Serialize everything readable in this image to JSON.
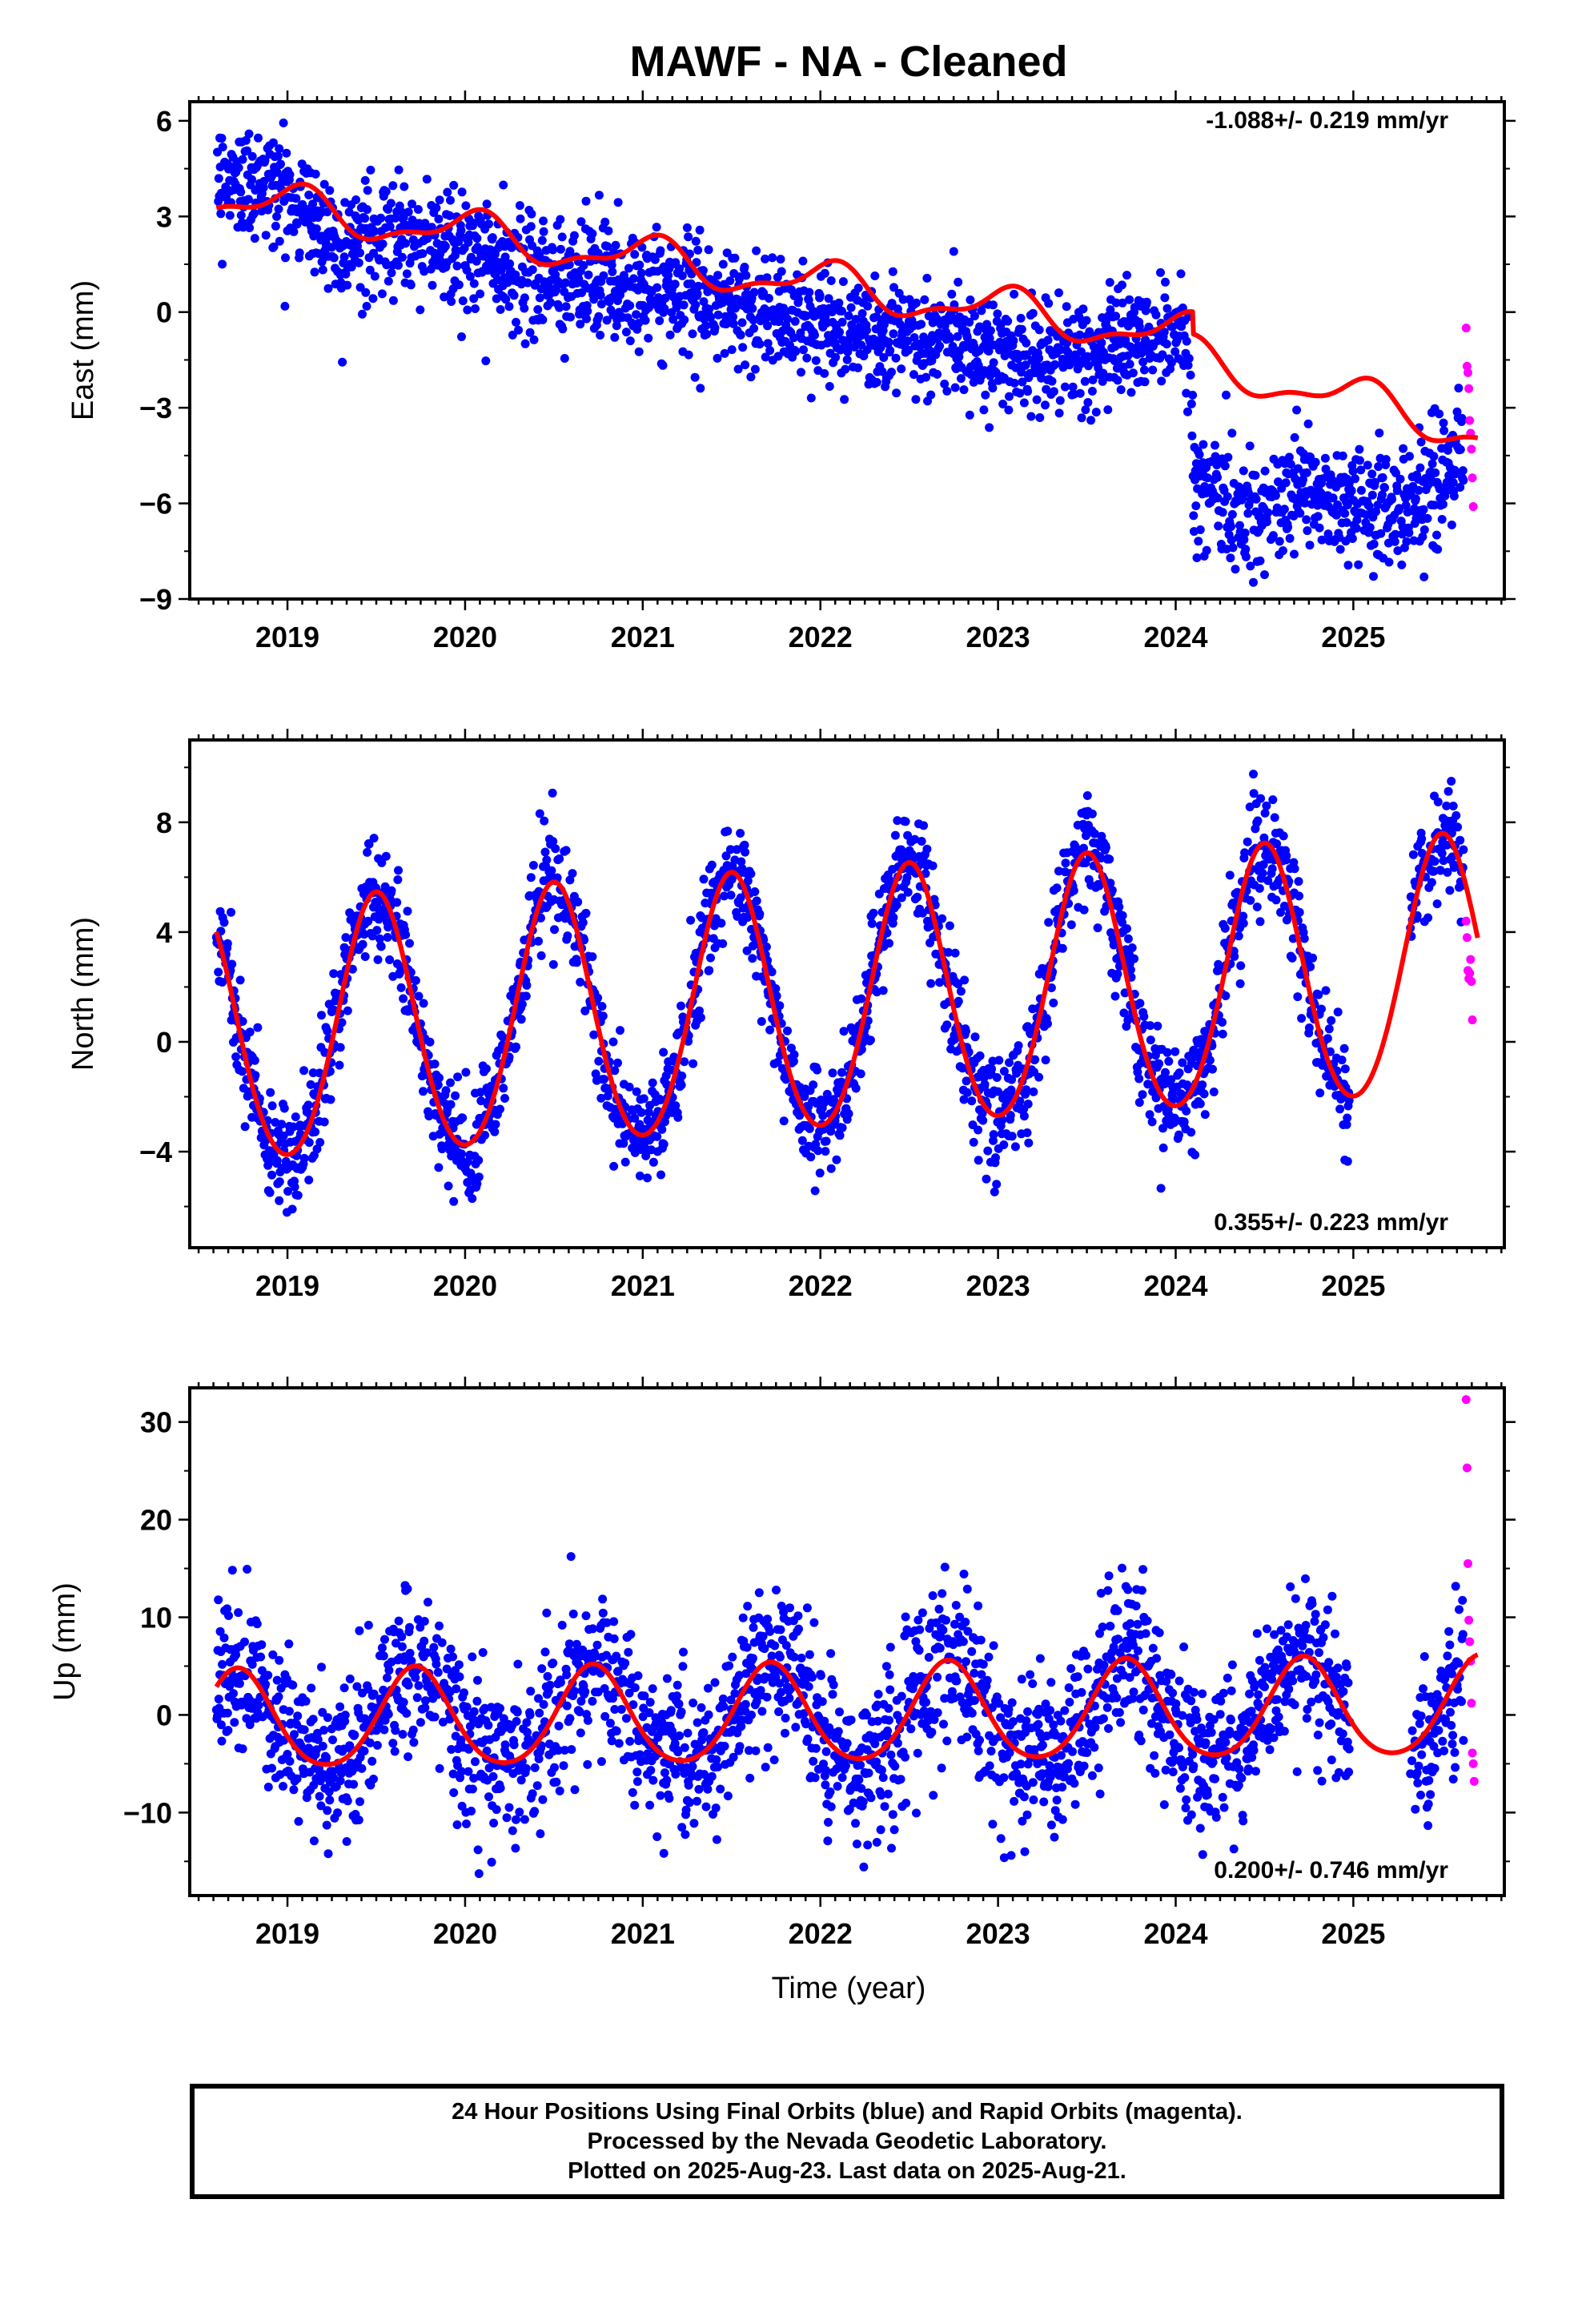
{
  "title": "MAWF  - NA - Cleaned",
  "xlabel": "Time (year)",
  "caption": {
    "line1": "24 Hour Positions Using Final Orbits (blue) and Rapid Orbits (magenta).",
    "line2": "Processed by the Nevada Geodetic Laboratory.",
    "line3": "Plotted on 2025-Aug-23. Last data on 2025-Aug-21."
  },
  "colors": {
    "final_orbits": "#0000ff",
    "rapid_orbits": "#ff00ff",
    "model": "#ff0000",
    "frame": "#000000"
  },
  "chart_data": [
    {
      "type": "scatter",
      "ylabel": "East (mm)",
      "rate_text": "-1.088+/- 0.219 mm/yr",
      "rate_position": "top-right",
      "xlim": [
        2018.45,
        2025.85
      ],
      "ylim": [
        -9,
        6.6
      ],
      "yticks": [
        6,
        3,
        0,
        -3,
        -6,
        -9
      ],
      "xticks": [
        2019,
        2020,
        2021,
        2022,
        2023,
        2024,
        2025
      ],
      "grid": false,
      "series": [
        {
          "kind": "points",
          "color_key": "final_orbits",
          "x_range": [
            2018.6,
            2025.62
          ],
          "scatter_sd": 0.9,
          "centerline": [
            [
              2018.6,
              4.3
            ],
            [
              2019.0,
              3.8
            ],
            [
              2019.3,
              2.2
            ],
            [
              2019.7,
              2.4
            ],
            [
              2020.0,
              2.0
            ],
            [
              2020.3,
              1.3
            ],
            [
              2020.7,
              1.0
            ],
            [
              2021.0,
              0.8
            ],
            [
              2021.4,
              0.2
            ],
            [
              2021.7,
              0.0
            ],
            [
              2022.0,
              -0.4
            ],
            [
              2022.4,
              -0.8
            ],
            [
              2022.7,
              -0.8
            ],
            [
              2023.0,
              -1.3
            ],
            [
              2023.4,
              -1.6
            ],
            [
              2023.7,
              -1.0
            ],
            [
              2024.0,
              -0.7
            ],
            [
              2024.08,
              -1.2
            ],
            [
              2024.1,
              -5.3
            ],
            [
              2024.4,
              -6.5
            ],
            [
              2024.7,
              -5.6
            ],
            [
              2025.0,
              -6.0
            ],
            [
              2025.3,
              -6.2
            ],
            [
              2025.4,
              -5.6
            ],
            [
              2025.62,
              -4.5
            ]
          ]
        },
        {
          "kind": "points",
          "color_key": "rapid_orbits",
          "x_range": [
            2025.63,
            2025.7
          ],
          "values": [
            [
              2025.635,
              -0.5
            ],
            [
              2025.64,
              -1.7
            ],
            [
              2025.645,
              -1.9
            ],
            [
              2025.65,
              -2.4
            ],
            [
              2025.655,
              -3.4
            ],
            [
              2025.66,
              -3.8
            ],
            [
              2025.665,
              -4.3
            ],
            [
              2025.67,
              -5.2
            ],
            [
              2025.675,
              -6.1
            ]
          ]
        },
        {
          "kind": "line",
          "color_key": "model",
          "trend": {
            "t0": 2018.6,
            "y0": 3.6,
            "segments": [
              [
                2018.6,
                -0.8
              ],
              [
                2024.1,
                -1.4
              ]
            ],
            "offset_at": 2024.1,
            "offset": -0.7
          },
          "seasonal": {
            "annual_amp": 0.6,
            "annual_phase": 0.2,
            "semiannual_amp": 0.25,
            "semiannual_phase": 0.5
          },
          "x_range": [
            2018.6,
            2025.7
          ]
        }
      ]
    },
    {
      "type": "scatter",
      "ylabel": "North (mm)",
      "rate_text": "0.355+/- 0.223 mm/yr",
      "rate_position": "bottom-right",
      "xlim": [
        2018.45,
        2025.85
      ],
      "ylim": [
        -7.5,
        11
      ],
      "yticks": [
        8,
        4,
        0,
        -4
      ],
      "xticks": [
        2019,
        2020,
        2021,
        2022,
        2023,
        2024,
        2025
      ],
      "grid": false,
      "series": [
        {
          "kind": "points",
          "color_key": "final_orbits",
          "x_range": [
            2018.6,
            2025.62
          ],
          "scatter_sd": 1.0,
          "follows_model": true,
          "x_gaps": [
            [
              2024.98,
              2025.32
            ]
          ]
        },
        {
          "kind": "points",
          "color_key": "rapid_orbits",
          "x_range": [
            2025.63,
            2025.7
          ],
          "values": [
            [
              2025.635,
              4.4
            ],
            [
              2025.64,
              3.8
            ],
            [
              2025.645,
              2.6
            ],
            [
              2025.65,
              2.3
            ],
            [
              2025.655,
              2.5
            ],
            [
              2025.66,
              3.0
            ],
            [
              2025.665,
              2.2
            ],
            [
              2025.67,
              0.8
            ]
          ]
        },
        {
          "kind": "line",
          "color_key": "model",
          "model_params": {
            "mean0": 0.1,
            "rate": 0.355,
            "t0": 2018.6,
            "annual_amp": 4.7,
            "annual_phase_peak": 0.5,
            "semiannual_amp": 0.35
          },
          "x_range": [
            2018.6,
            2025.7
          ]
        }
      ]
    },
    {
      "type": "scatter",
      "ylabel": "Up (mm)",
      "rate_text": "0.200+/- 0.746 mm/yr",
      "rate_position": "bottom-right",
      "xlim": [
        2018.45,
        2025.85
      ],
      "ylim": [
        -18.5,
        33.5
      ],
      "yticks": [
        30,
        20,
        10,
        0,
        -10
      ],
      "xticks": [
        2019,
        2020,
        2021,
        2022,
        2023,
        2024,
        2025
      ],
      "grid": false,
      "series": [
        {
          "kind": "points",
          "color_key": "final_orbits",
          "x_range": [
            2018.6,
            2025.62
          ],
          "scatter_sd": 4.0,
          "follows_model": true,
          "x_gaps": [
            [
              2024.98,
              2025.32
            ]
          ]
        },
        {
          "kind": "points",
          "color_key": "rapid_orbits",
          "x_range": [
            2025.63,
            2025.7
          ],
          "values": [
            [
              2025.635,
              32.3
            ],
            [
              2025.64,
              25.3
            ],
            [
              2025.645,
              15.5
            ],
            [
              2025.65,
              9.7
            ],
            [
              2025.655,
              7.5
            ],
            [
              2025.66,
              5.5
            ],
            [
              2025.665,
              1.2
            ],
            [
              2025.67,
              -3.9
            ],
            [
              2025.675,
              -5.0
            ],
            [
              2025.68,
              -6.8
            ]
          ]
        },
        {
          "kind": "line",
          "color_key": "model",
          "model_params": {
            "mean0": -0.8,
            "rate": 0.2,
            "t0": 2018.6,
            "annual_amp": 5.0,
            "annual_phase_peak": 0.72,
            "semiannual_amp": 0.6
          },
          "x_range": [
            2018.6,
            2025.7
          ]
        }
      ]
    }
  ]
}
